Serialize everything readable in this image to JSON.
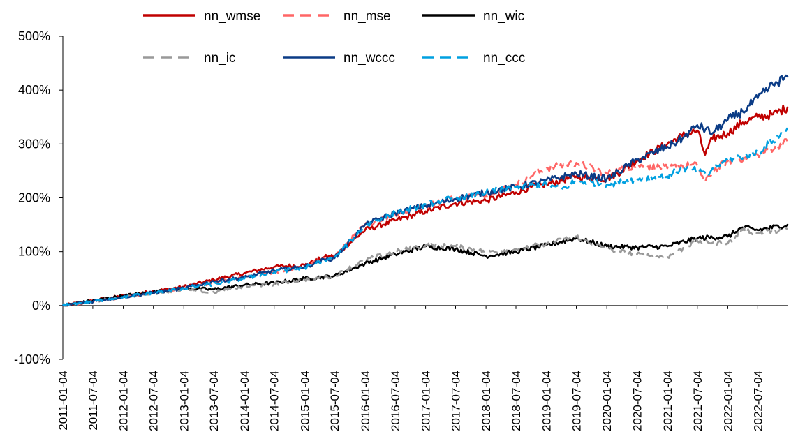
{
  "chart_data": {
    "type": "line",
    "title": "",
    "xlabel": "",
    "ylabel": "",
    "ylim": [
      -100,
      500
    ],
    "y_ticks": [
      -100,
      0,
      100,
      200,
      300,
      400,
      500
    ],
    "y_tick_labels": [
      "-100%",
      "0%",
      "100%",
      "200%",
      "300%",
      "400%",
      "500%"
    ],
    "x_start": "2011-01-04",
    "x_end": "2022-12-31",
    "x_tick_labels": [
      "2011-01-04",
      "2011-07-04",
      "2012-01-04",
      "2012-07-04",
      "2013-01-04",
      "2013-07-04",
      "2014-01-04",
      "2014-07-04",
      "2015-01-04",
      "2015-07-04",
      "2016-01-04",
      "2016-07-04",
      "2017-01-04",
      "2017-07-04",
      "2018-01-04",
      "2018-07-04",
      "2019-01-04",
      "2019-07-04",
      "2020-01-04",
      "2020-07-04",
      "2021-01-04",
      "2021-07-04",
      "2022-01-04",
      "2022-07-04"
    ],
    "legend_position": "top",
    "series": [
      {
        "name": "nn_wmse",
        "color": "#C00000",
        "dash": "solid",
        "points": [
          [
            "2011-01-04",
            0
          ],
          [
            "2012-01-04",
            18
          ],
          [
            "2013-01-04",
            35
          ],
          [
            "2013-07-04",
            48
          ],
          [
            "2014-01-04",
            60
          ],
          [
            "2014-07-04",
            72
          ],
          [
            "2015-01-04",
            75
          ],
          [
            "2015-05-04",
            90
          ],
          [
            "2015-07-04",
            92
          ],
          [
            "2016-01-04",
            140
          ],
          [
            "2016-07-04",
            158
          ],
          [
            "2017-01-04",
            175
          ],
          [
            "2017-07-04",
            190
          ],
          [
            "2018-01-04",
            195
          ],
          [
            "2018-07-04",
            210
          ],
          [
            "2018-10-04",
            220
          ],
          [
            "2019-01-04",
            225
          ],
          [
            "2019-07-04",
            240
          ],
          [
            "2020-01-04",
            235
          ],
          [
            "2020-04-04",
            250
          ],
          [
            "2020-07-04",
            270
          ],
          [
            "2021-01-04",
            300
          ],
          [
            "2021-04-04",
            315
          ],
          [
            "2021-07-04",
            325
          ],
          [
            "2021-08-20",
            280
          ],
          [
            "2021-10-04",
            310
          ],
          [
            "2022-01-04",
            320
          ],
          [
            "2022-04-04",
            340
          ],
          [
            "2022-07-04",
            350
          ],
          [
            "2022-10-04",
            355
          ],
          [
            "2022-12-31",
            368
          ]
        ]
      },
      {
        "name": "nn_mse",
        "color": "#FF6666",
        "dash": "dashed",
        "points": [
          [
            "2011-01-04",
            0
          ],
          [
            "2012-01-04",
            16
          ],
          [
            "2013-01-04",
            32
          ],
          [
            "2013-07-04",
            42
          ],
          [
            "2014-01-04",
            52
          ],
          [
            "2014-07-04",
            62
          ],
          [
            "2015-01-04",
            72
          ],
          [
            "2015-05-04",
            88
          ],
          [
            "2015-07-04",
            90
          ],
          [
            "2016-01-04",
            150
          ],
          [
            "2016-07-04",
            170
          ],
          [
            "2017-01-04",
            185
          ],
          [
            "2017-07-04",
            200
          ],
          [
            "2018-01-04",
            205
          ],
          [
            "2018-07-04",
            225
          ],
          [
            "2018-10-04",
            240
          ],
          [
            "2019-01-04",
            255
          ],
          [
            "2019-07-04",
            265
          ],
          [
            "2020-01-04",
            245
          ],
          [
            "2020-07-04",
            260
          ],
          [
            "2021-01-04",
            255
          ],
          [
            "2021-04-04",
            260
          ],
          [
            "2021-07-04",
            260
          ],
          [
            "2021-08-20",
            228
          ],
          [
            "2021-10-04",
            250
          ],
          [
            "2022-01-04",
            268
          ],
          [
            "2022-07-04",
            280
          ],
          [
            "2022-12-31",
            305
          ]
        ]
      },
      {
        "name": "nn_wic",
        "color": "#000000",
        "dash": "solid",
        "points": [
          [
            "2011-01-04",
            0
          ],
          [
            "2012-01-04",
            18
          ],
          [
            "2013-01-04",
            32
          ],
          [
            "2013-07-04",
            30
          ],
          [
            "2014-01-04",
            38
          ],
          [
            "2014-07-04",
            42
          ],
          [
            "2015-01-04",
            50
          ],
          [
            "2015-07-04",
            55
          ],
          [
            "2016-01-04",
            78
          ],
          [
            "2016-07-04",
            95
          ],
          [
            "2017-01-04",
            110
          ],
          [
            "2017-07-04",
            105
          ],
          [
            "2018-01-04",
            92
          ],
          [
            "2018-07-04",
            100
          ],
          [
            "2019-01-04",
            112
          ],
          [
            "2019-07-04",
            125
          ],
          [
            "2020-01-04",
            110
          ],
          [
            "2020-07-04",
            108
          ],
          [
            "2021-01-04",
            110
          ],
          [
            "2021-07-04",
            125
          ],
          [
            "2022-01-04",
            128
          ],
          [
            "2022-04-04",
            145
          ],
          [
            "2022-07-04",
            140
          ],
          [
            "2022-12-31",
            150
          ]
        ]
      },
      {
        "name": "nn_ic",
        "color": "#999999",
        "dash": "dashed",
        "points": [
          [
            "2011-01-04",
            0
          ],
          [
            "2012-01-04",
            15
          ],
          [
            "2013-01-04",
            30
          ],
          [
            "2013-07-04",
            25
          ],
          [
            "2014-01-04",
            35
          ],
          [
            "2014-07-04",
            40
          ],
          [
            "2015-01-04",
            48
          ],
          [
            "2015-07-04",
            55
          ],
          [
            "2016-01-04",
            85
          ],
          [
            "2016-07-04",
            100
          ],
          [
            "2017-01-04",
            112
          ],
          [
            "2017-07-04",
            110
          ],
          [
            "2018-01-04",
            100
          ],
          [
            "2018-07-04",
            105
          ],
          [
            "2019-01-04",
            115
          ],
          [
            "2019-07-04",
            128
          ],
          [
            "2020-01-04",
            105
          ],
          [
            "2020-07-04",
            95
          ],
          [
            "2021-01-04",
            90
          ],
          [
            "2021-07-04",
            120
          ],
          [
            "2022-01-04",
            115
          ],
          [
            "2022-04-04",
            140
          ],
          [
            "2022-07-04",
            135
          ],
          [
            "2022-12-31",
            142
          ]
        ]
      },
      {
        "name": "nn_wccc",
        "color": "#0B3C86",
        "dash": "solid",
        "points": [
          [
            "2011-01-04",
            0
          ],
          [
            "2012-01-04",
            16
          ],
          [
            "2013-01-04",
            32
          ],
          [
            "2013-07-04",
            45
          ],
          [
            "2014-01-04",
            52
          ],
          [
            "2014-07-04",
            65
          ],
          [
            "2015-01-04",
            72
          ],
          [
            "2015-05-04",
            85
          ],
          [
            "2015-07-04",
            88
          ],
          [
            "2016-01-04",
            150
          ],
          [
            "2016-07-04",
            172
          ],
          [
            "2017-01-04",
            185
          ],
          [
            "2017-07-04",
            198
          ],
          [
            "2018-01-04",
            210
          ],
          [
            "2018-07-04",
            220
          ],
          [
            "2019-01-04",
            232
          ],
          [
            "2019-07-04",
            245
          ],
          [
            "2020-01-04",
            235
          ],
          [
            "2020-07-04",
            270
          ],
          [
            "2021-01-04",
            295
          ],
          [
            "2021-04-04",
            310
          ],
          [
            "2021-07-04",
            335
          ],
          [
            "2021-10-04",
            320
          ],
          [
            "2022-01-04",
            345
          ],
          [
            "2022-04-04",
            360
          ],
          [
            "2022-07-04",
            385
          ],
          [
            "2022-10-04",
            410
          ],
          [
            "2022-12-31",
            425
          ]
        ]
      },
      {
        "name": "nn_ccc",
        "color": "#00A0E0",
        "dash": "dashed",
        "points": [
          [
            "2011-01-04",
            0
          ],
          [
            "2012-01-04",
            16
          ],
          [
            "2013-01-04",
            32
          ],
          [
            "2013-07-04",
            40
          ],
          [
            "2014-01-04",
            50
          ],
          [
            "2014-07-04",
            62
          ],
          [
            "2015-01-04",
            70
          ],
          [
            "2015-05-04",
            85
          ],
          [
            "2015-07-04",
            88
          ],
          [
            "2016-01-04",
            148
          ],
          [
            "2016-07-04",
            172
          ],
          [
            "2017-01-04",
            188
          ],
          [
            "2017-07-04",
            200
          ],
          [
            "2018-01-04",
            210
          ],
          [
            "2018-07-04",
            220
          ],
          [
            "2019-01-04",
            225
          ],
          [
            "2019-04-04",
            215
          ],
          [
            "2019-07-04",
            232
          ],
          [
            "2020-01-04",
            225
          ],
          [
            "2020-07-04",
            235
          ],
          [
            "2021-01-04",
            240
          ],
          [
            "2021-04-04",
            255
          ],
          [
            "2021-07-04",
            250
          ],
          [
            "2021-09-04",
            240
          ],
          [
            "2021-10-04",
            255
          ],
          [
            "2022-01-04",
            270
          ],
          [
            "2022-07-04",
            285
          ],
          [
            "2022-10-04",
            305
          ],
          [
            "2022-12-31",
            330
          ]
        ]
      }
    ]
  }
}
